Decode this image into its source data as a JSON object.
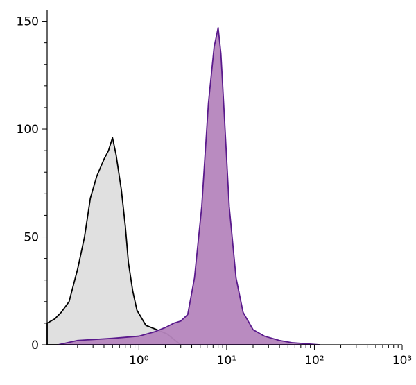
{
  "chart_data": {
    "type": "histogram-overlay",
    "xscale": "log",
    "xlim": [
      0.09,
      1000
    ],
    "ylim": [
      0,
      155
    ],
    "xticks": [
      {
        "value": 1,
        "label": "10⁰"
      },
      {
        "value": 10,
        "label": "10¹"
      },
      {
        "value": 100,
        "label": "10²"
      },
      {
        "value": 1000,
        "label": "10³"
      }
    ],
    "xminorticks": [
      0.2,
      0.3,
      0.4,
      0.5,
      0.6,
      0.7,
      0.8,
      0.9,
      2,
      3,
      4,
      5,
      6,
      7,
      8,
      9,
      20,
      30,
      40,
      50,
      60,
      70,
      80,
      90,
      200,
      300,
      400,
      500,
      600,
      700,
      800,
      900
    ],
    "yticks": [
      0,
      50,
      100,
      150
    ],
    "yminorticks": [
      10,
      20,
      30,
      40,
      60,
      70,
      80,
      90,
      110,
      120,
      130,
      140
    ],
    "series": [
      {
        "color": "#e0e0e0",
        "edge": "#000000",
        "x": [
          0.09,
          0.11,
          0.13,
          0.16,
          0.2,
          0.24,
          0.28,
          0.33,
          0.4,
          0.45,
          0.5,
          0.55,
          0.63,
          0.7,
          0.76,
          0.85,
          0.95,
          1.2,
          1.6,
          2.1,
          2.6,
          3
        ],
        "values": [
          10,
          12,
          15,
          20,
          35,
          50,
          68,
          78,
          86,
          90,
          96,
          88,
          72,
          55,
          38,
          25,
          16,
          9,
          7,
          5,
          2,
          0
        ]
      },
      {
        "color": "#b585bd",
        "edge": "#5a1a8c",
        "x": [
          0.12,
          0.2,
          0.5,
          1,
          1.5,
          2,
          2.5,
          3,
          3.6,
          4.3,
          5.2,
          6.2,
          7.2,
          8,
          8.6,
          9.3,
          10.7,
          12.8,
          15.4,
          20,
          27,
          40,
          55,
          115
        ],
        "values": [
          0,
          2,
          3,
          4,
          6,
          8,
          10,
          11,
          14,
          31,
          64,
          112,
          138,
          147,
          135,
          110,
          64,
          31,
          15,
          7,
          4,
          2,
          1,
          0
        ]
      }
    ]
  }
}
